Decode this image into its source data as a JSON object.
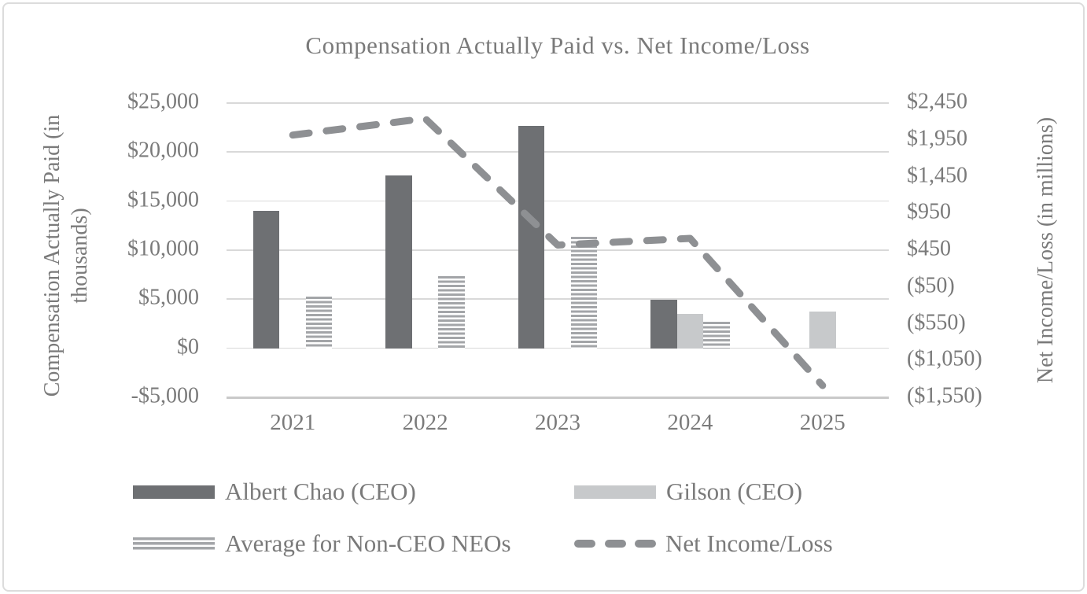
{
  "colors": {
    "bar_dark": "#6e7073",
    "bar_light": "#c7c9cb",
    "stripe": "#a3a5a8",
    "line": "#8e9093",
    "gridline": "#d9d9d9",
    "axis_line": "#c9c9c9",
    "text": "#7a7a7a",
    "border": "#dcdcdc"
  },
  "chart_data": {
    "type": "bar+line",
    "title": "Compensation Actually Paid vs. Net Income/Loss",
    "categories": [
      "2021",
      "2022",
      "2023",
      "2024",
      "2025"
    ],
    "left_axis": {
      "title_line1": "Compensation Actually Paid (in",
      "title_line2": "thousands)",
      "ticks": [
        "$25,000",
        "$20,000",
        "$15,000",
        "$10,000",
        "$5,000",
        "$0",
        "-$5,000"
      ],
      "min": -5000,
      "max": 25000,
      "step": 5000
    },
    "right_axis": {
      "title": "Net Income/Loss (in millions)",
      "ticks": [
        "$2,450",
        "$1,950",
        "$1,450",
        "$950",
        "$450",
        "($50)",
        "($550)",
        "($1,050)",
        "($1,550)"
      ],
      "min": -1550,
      "max": 2450,
      "step": 500
    },
    "series": [
      {
        "name": "Albert Chao (CEO)",
        "type": "bar",
        "style": "solid-dark",
        "axis": "left",
        "values": [
          14000,
          17600,
          22700,
          4950,
          null
        ]
      },
      {
        "name": "Gilson (CEO)",
        "type": "bar",
        "style": "solid-light",
        "axis": "left",
        "values": [
          null,
          null,
          null,
          3530,
          3750
        ]
      },
      {
        "name": "Average for Non-CEO NEOs",
        "type": "bar",
        "style": "striped",
        "axis": "left",
        "values": [
          5280,
          7340,
          11370,
          2720,
          null
        ]
      },
      {
        "name": "Net Income/Loss",
        "type": "line",
        "style": "dashed",
        "axis": "right",
        "values": [
          2015,
          2240,
          520,
          610,
          -1390
        ]
      }
    ],
    "legend_position": "bottom",
    "grid": "horizontal"
  }
}
